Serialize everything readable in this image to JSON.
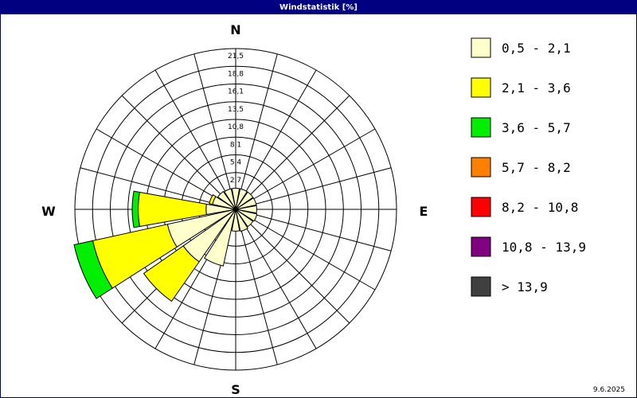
{
  "window": {
    "title": "Windstatistik [%]",
    "date": "9.6.2025"
  },
  "chart_data": {
    "type": "windrose",
    "title": "Windstatistik [%]",
    "directions": [
      "N",
      "E",
      "S",
      "W"
    ],
    "sector_count": 16,
    "radial_ticks": [
      "2,7",
      "5,4",
      "8,1",
      "10,8",
      "13,5",
      "16,1",
      "18,8",
      "21,5"
    ],
    "rmax": 21.5,
    "grid": true,
    "legend_position": "right",
    "classes": [
      {
        "label": "0,5 - 2,1",
        "color": "#ffffcc"
      },
      {
        "label": "2,1 - 3,6",
        "color": "#ffff00"
      },
      {
        "label": "3,6 - 5,7",
        "color": "#00ee00"
      },
      {
        "label": "5,7 - 8,2",
        "color": "#ff8000"
      },
      {
        "label": "8,2 - 10,8",
        "color": "#ff0000"
      },
      {
        "label": "10,8 - 13,9",
        "color": "#800080"
      },
      {
        "label": " > 13,9",
        "color": "#404040"
      }
    ],
    "sectors": [
      {
        "dir": 90,
        "values": [
          0.3,
          0,
          0,
          0,
          0,
          0,
          0
        ]
      },
      {
        "dir": 112.5,
        "values": [
          0.4,
          0,
          0,
          0,
          0,
          0,
          0
        ]
      },
      {
        "dir": 135,
        "values": [
          0.3,
          0,
          0,
          0,
          0,
          0,
          0
        ]
      },
      {
        "dir": 157.5,
        "values": [
          0.5,
          0,
          0,
          0,
          0,
          0,
          0
        ]
      },
      {
        "dir": 180,
        "values": [
          0.4,
          0,
          0,
          0,
          0,
          0,
          0
        ]
      },
      {
        "dir": 202.5,
        "values": [
          5.9,
          0,
          0,
          0,
          0,
          0,
          0
        ]
      },
      {
        "dir": 225,
        "values": [
          6.8,
          7.3,
          0,
          0,
          0,
          0,
          0
        ]
      },
      {
        "dir": 247.5,
        "values": [
          7.7,
          11.6,
          2.9,
          0,
          0,
          0,
          0
        ]
      },
      {
        "dir": 270,
        "values": [
          1.6,
          10.3,
          0.9,
          0,
          0,
          0,
          0
        ]
      },
      {
        "dir": 292.5,
        "values": [
          0.7,
          0.5,
          0,
          0,
          0,
          0,
          0
        ]
      },
      {
        "dir": 315,
        "values": [
          0.4,
          0,
          0,
          0,
          0,
          0,
          0
        ]
      },
      {
        "dir": 337.5,
        "values": [
          0.3,
          0,
          0,
          0,
          0,
          0,
          0
        ]
      },
      {
        "dir": 0,
        "values": [
          0.3,
          0,
          0,
          0,
          0,
          0,
          0
        ]
      },
      {
        "dir": 22.5,
        "values": [
          0.3,
          0,
          0,
          0,
          0,
          0,
          0
        ]
      },
      {
        "dir": 45,
        "values": [
          0.3,
          0,
          0,
          0,
          0,
          0,
          0
        ]
      },
      {
        "dir": 67.5,
        "values": [
          0.3,
          0,
          0,
          0,
          0,
          0,
          0
        ]
      }
    ]
  }
}
